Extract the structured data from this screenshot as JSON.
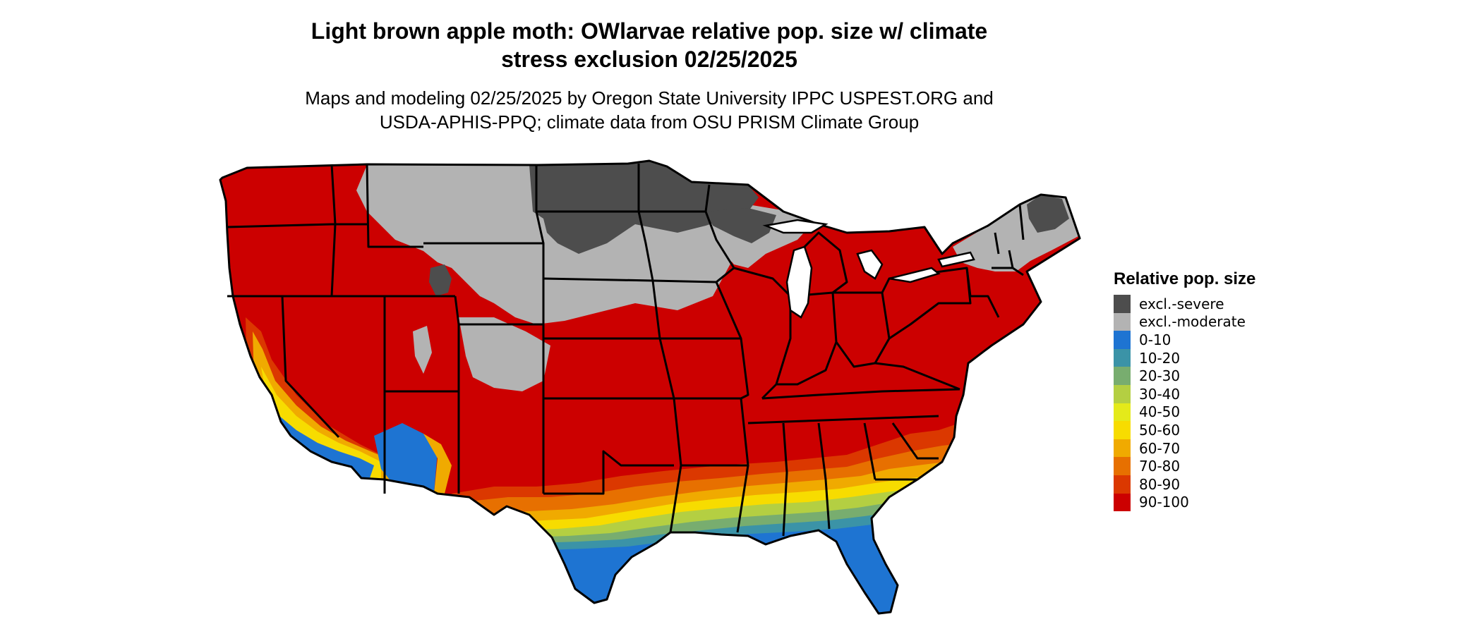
{
  "header": {
    "title_line1": "Light brown apple moth: OWlarvae relative pop. size w/ climate",
    "title_line2": "stress exclusion 02/25/2025",
    "subtitle_line1": "Maps and modeling 02/25/2025 by Oregon State University IPPC USPEST.ORG and",
    "subtitle_line2": "USDA-APHIS-PPQ; climate data from OSU PRISM Climate Group"
  },
  "legend": {
    "title": "Relative pop. size",
    "items": [
      {
        "label": "excl.-severe",
        "color": "#4d4d4d"
      },
      {
        "label": "excl.-moderate",
        "color": "#b3b3b3"
      },
      {
        "label": "0-10",
        "color": "#1e74d2"
      },
      {
        "label": "10-20",
        "color": "#3b93a7"
      },
      {
        "label": "20-30",
        "color": "#78ad6f"
      },
      {
        "label": "30-40",
        "color": "#b4cf42"
      },
      {
        "label": "40-50",
        "color": "#e4ea1a"
      },
      {
        "label": "50-60",
        "color": "#f7dc00"
      },
      {
        "label": "60-70",
        "color": "#f0aa00"
      },
      {
        "label": "70-80",
        "color": "#e77000"
      },
      {
        "label": "80-90",
        "color": "#db3800"
      },
      {
        "label": "90-100",
        "color": "#cc0000"
      }
    ]
  }
}
